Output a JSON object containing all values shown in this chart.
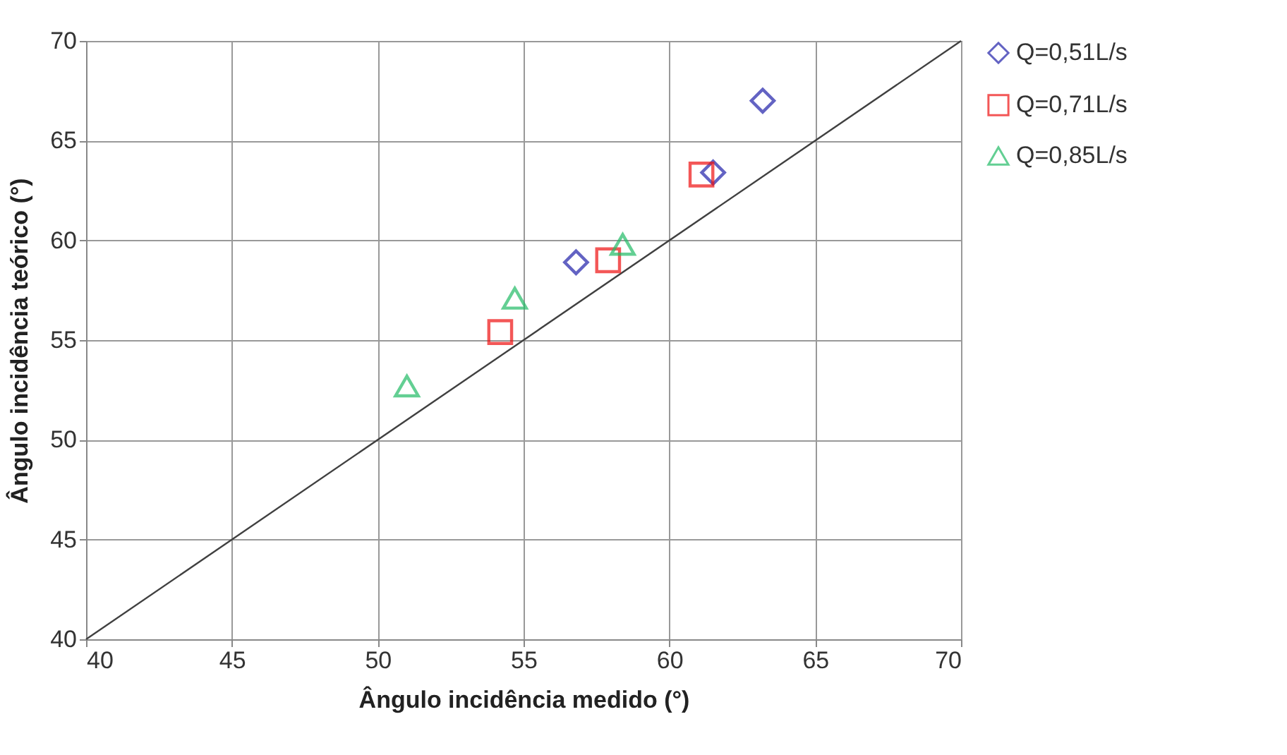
{
  "chart_data": {
    "type": "scatter",
    "xlabel": "Ângulo incidência medido (°)",
    "ylabel": "Ângulo incidência teórico (°)",
    "xlim": [
      40,
      70
    ],
    "ylim": [
      40,
      70
    ],
    "xticks": [
      40,
      45,
      50,
      55,
      60,
      65,
      70
    ],
    "yticks": [
      40,
      45,
      50,
      55,
      60,
      65,
      70
    ],
    "grid": true,
    "legend": "right",
    "series": [
      {
        "type": "line",
        "color": "#404040",
        "x": [
          40,
          70
        ],
        "values": [
          40,
          70
        ],
        "marker": "none",
        "line_style": "solid"
      },
      {
        "name": "Q=0,51L/s",
        "color": "#2222aa",
        "marker": "diamond",
        "x": [
          56.8,
          61.5,
          63.2
        ],
        "values": [
          58.9,
          63.4,
          67.0
        ]
      },
      {
        "name": "Q=0,71L/s",
        "color": "#ee1111",
        "marker": "square",
        "x": [
          54.2,
          57.9,
          61.1
        ],
        "values": [
          55.4,
          59.0,
          63.3
        ]
      },
      {
        "name": "Q=0,85L/s",
        "color": "#22bb66",
        "marker": "triangle",
        "x": [
          51.0,
          54.7,
          58.4
        ],
        "values": [
          52.7,
          57.1,
          59.8
        ]
      }
    ]
  }
}
